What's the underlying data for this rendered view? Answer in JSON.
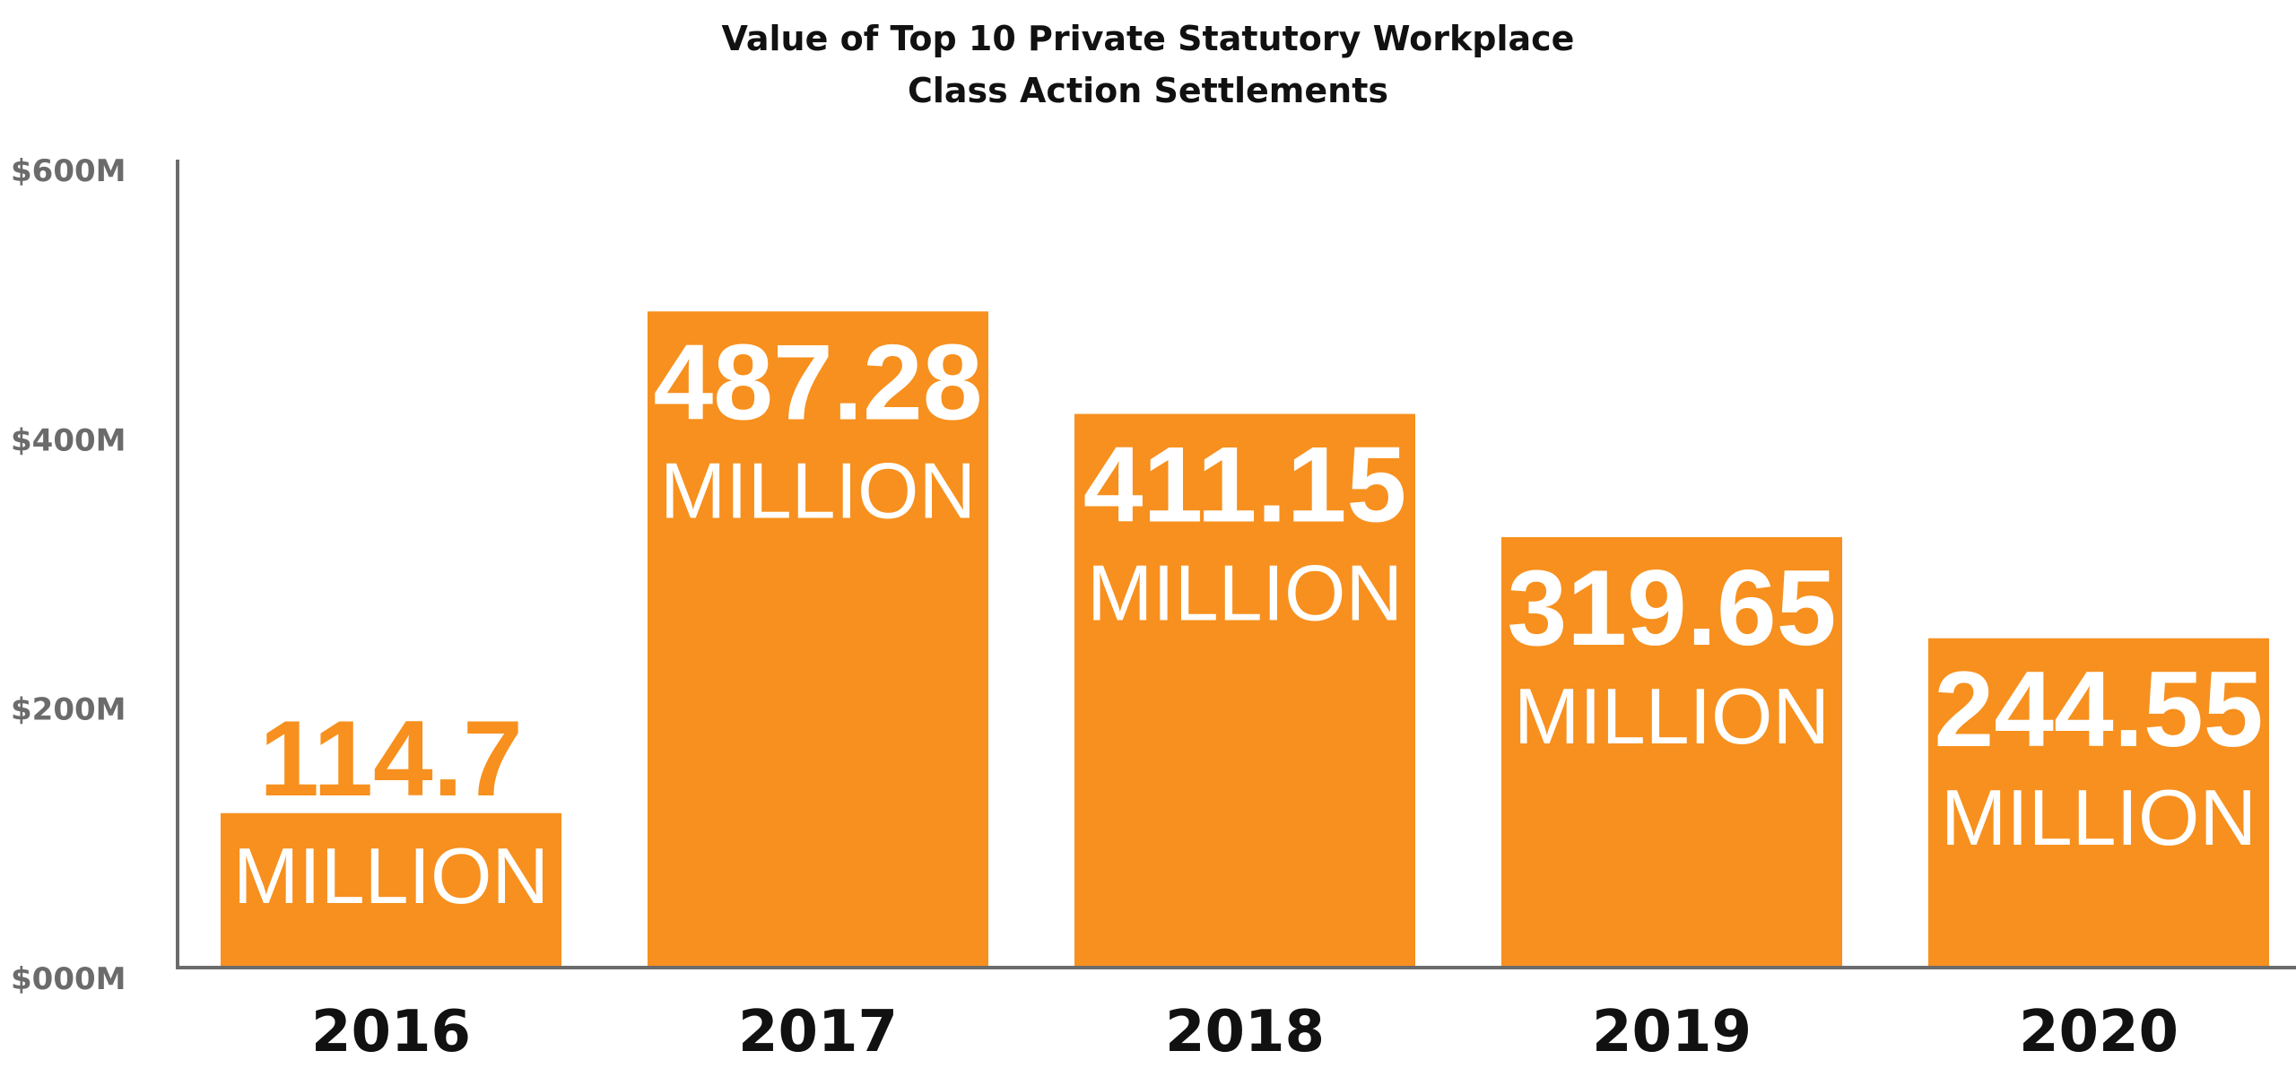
{
  "chart_data": {
    "type": "bar",
    "title": "Value of Top 10 Private Statutory Workplace",
    "subtitle": "Class Action Settlements",
    "categories": [
      "2016",
      "2017",
      "2018",
      "2019",
      "2020"
    ],
    "values": [
      114.7,
      487.28,
      411.15,
      319.65,
      244.55
    ],
    "value_labels": [
      "114.7",
      "487.28",
      "411.15",
      "319.65",
      "244.55"
    ],
    "value_unit_label": "MILLION",
    "y_ticks": [
      {
        "value": 0,
        "label": "$000M"
      },
      {
        "value": 200,
        "label": "$200M"
      },
      {
        "value": 400,
        "label": "$400M"
      },
      {
        "value": 600,
        "label": "$600M"
      }
    ],
    "ylim": [
      0,
      600
    ],
    "xlabel": "",
    "ylabel": "",
    "grid": false,
    "legend": "none",
    "colors": {
      "bar": "#F7901E",
      "axis": "#6b6b6b",
      "label_inside": "#ffffff",
      "label_outside": "#F7901E"
    }
  }
}
